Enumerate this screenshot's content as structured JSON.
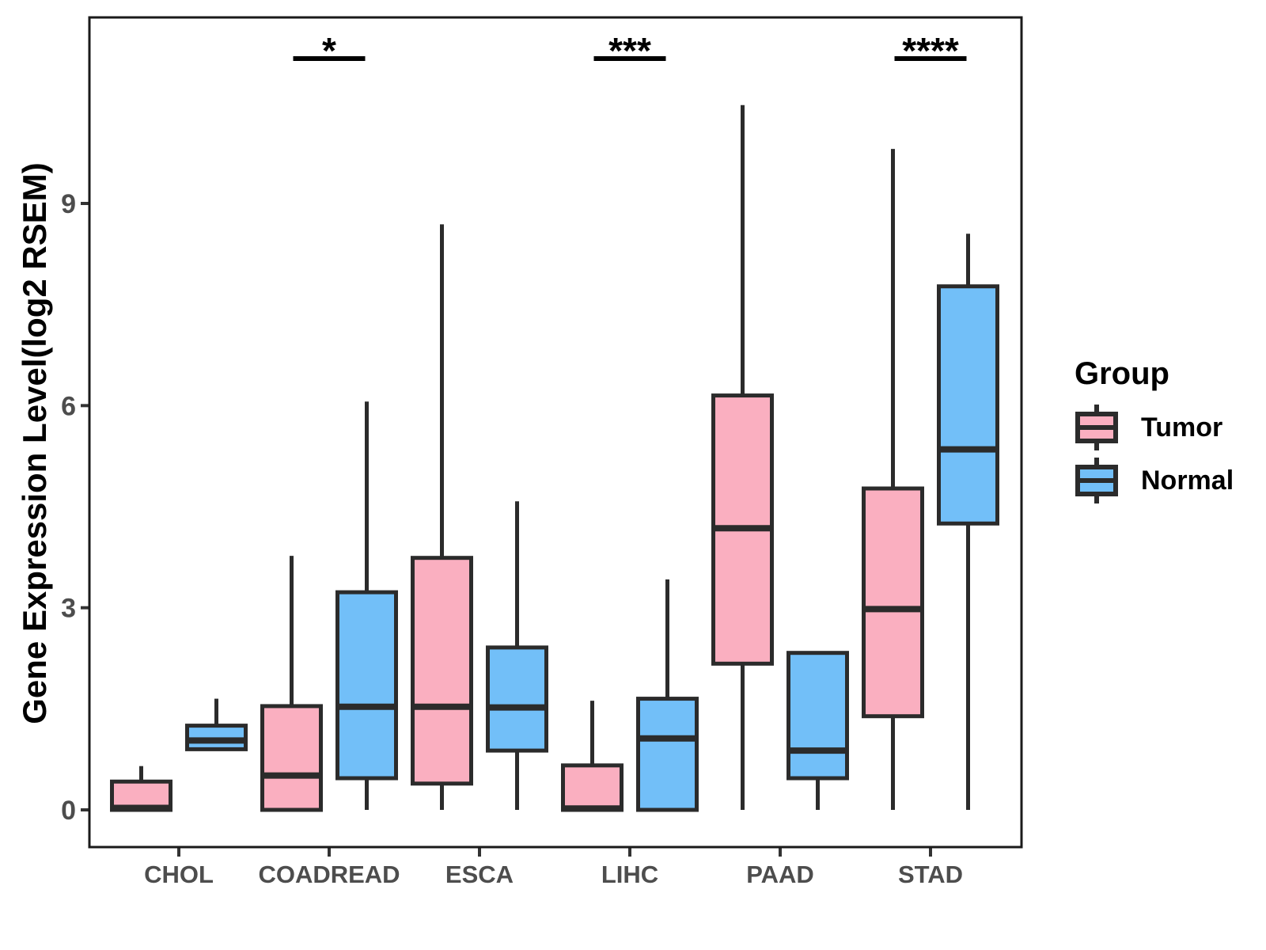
{
  "chart_data": {
    "type": "boxplot",
    "title": "",
    "xlabel": "",
    "ylabel": "Gene Expression Level(log2 RSEM)",
    "categories": [
      "CHOL",
      "COADREAD",
      "ESCA",
      "LIHC",
      "PAAD",
      "STAD"
    ],
    "y_ticks": [
      0,
      3,
      6,
      9
    ],
    "ylim": [
      -0.6,
      11.8
    ],
    "grid": false,
    "legend": {
      "title": "Group",
      "position": "right",
      "entries": [
        {
          "label": "Tumor",
          "color": "#FAAFC0"
        },
        {
          "label": "Normal",
          "color": "#72BFF8"
        }
      ]
    },
    "series": [
      {
        "name": "Tumor",
        "color": "#FAAFC0",
        "boxes": [
          {
            "low": 0,
            "q1": 0,
            "median": 0.03,
            "q3": 0.42,
            "high": 0.65
          },
          {
            "low": 0,
            "q1": 0,
            "median": 0.51,
            "q3": 1.54,
            "high": 3.77
          },
          {
            "low": 0,
            "q1": 0.39,
            "median": 1.53,
            "q3": 3.74,
            "high": 8.69
          },
          {
            "low": 0,
            "q1": 0,
            "median": 0.02,
            "q3": 0.66,
            "high": 1.62
          },
          {
            "low": 0,
            "q1": 2.17,
            "median": 4.18,
            "q3": 6.15,
            "high": 10.46
          },
          {
            "low": 0,
            "q1": 1.39,
            "median": 2.98,
            "q3": 4.77,
            "high": 9.81
          }
        ]
      },
      {
        "name": "Normal",
        "color": "#72BFF8",
        "boxes": [
          {
            "low": 0.9,
            "q1": 0.9,
            "median": 1.03,
            "q3": 1.25,
            "high": 1.65
          },
          {
            "low": 0,
            "q1": 0.47,
            "median": 1.53,
            "q3": 3.23,
            "high": 6.06
          },
          {
            "low": 0,
            "q1": 0.88,
            "median": 1.52,
            "q3": 2.41,
            "high": 4.58
          },
          {
            "low": 0,
            "q1": 0,
            "median": 1.06,
            "q3": 1.65,
            "high": 3.42
          },
          {
            "low": 0,
            "q1": 0.47,
            "median": 0.88,
            "q3": 2.33,
            "high": 2.33
          },
          {
            "low": 0,
            "q1": 4.25,
            "median": 5.35,
            "q3": 7.77,
            "high": 8.55
          }
        ]
      }
    ],
    "significance": [
      {
        "category": "COADREAD",
        "stars": "*"
      },
      {
        "category": "LIHC",
        "stars": "***"
      },
      {
        "category": "STAD",
        "stars": "****"
      }
    ]
  },
  "colors": {
    "box_stroke": "#2B2B2B",
    "axis_text": "#4D4D4D",
    "axis_line": "#1A1A1A",
    "significance": "#000000",
    "background": "#FFFFFF"
  }
}
